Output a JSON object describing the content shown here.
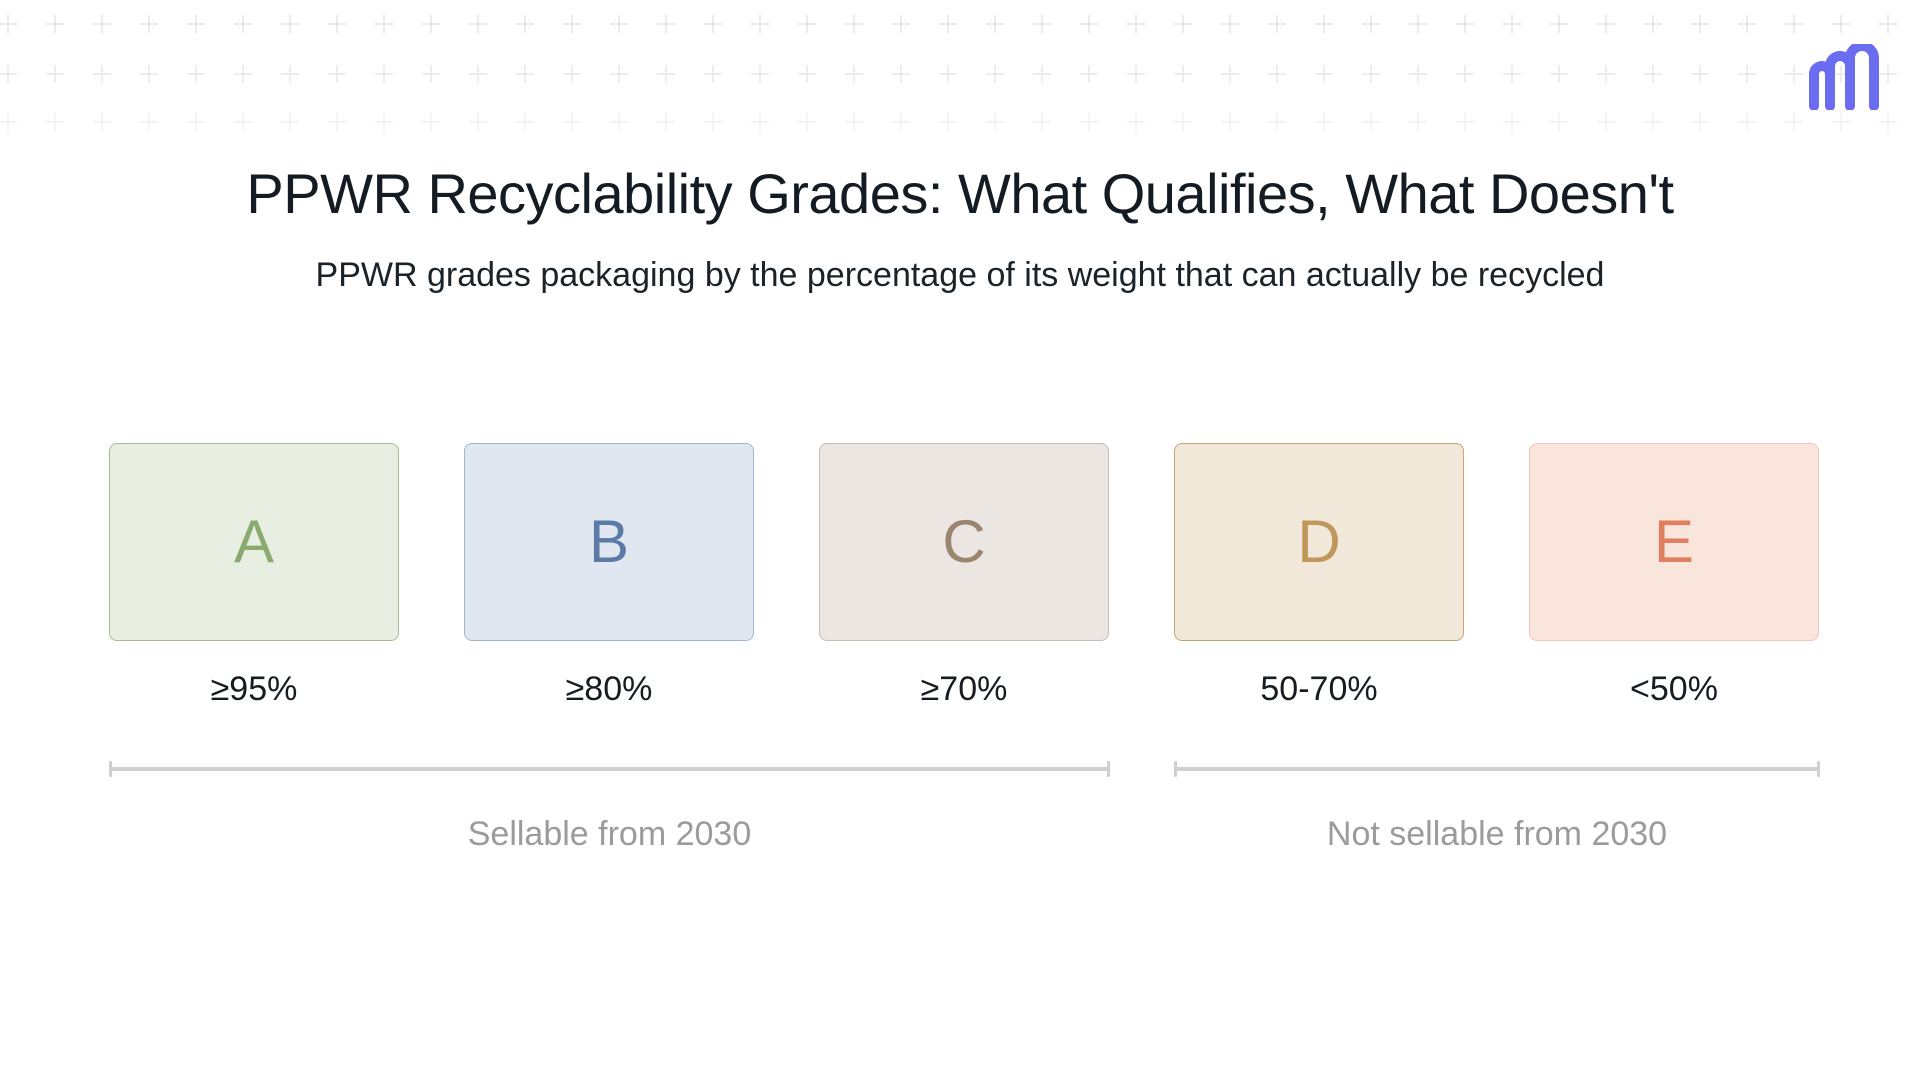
{
  "header": {
    "title": "PPWR Recyclability Grades: What Qualifies, What Doesn't",
    "subtitle": "PPWR grades packaging by the percentage of its weight that can actually be recycled"
  },
  "grades": [
    {
      "letter": "A",
      "threshold": "≥95%",
      "colors": {
        "fill": "#e9eee3",
        "border": "#a9bb92",
        "text": "#8aab70"
      }
    },
    {
      "letter": "B",
      "threshold": "≥80%",
      "colors": {
        "fill": "#e0e7f0",
        "border": "#a6b5c8",
        "text": "#5c7aa6"
      }
    },
    {
      "letter": "C",
      "threshold": "≥70%",
      "colors": {
        "fill": "#ebe6e1",
        "border": "#c7bdb3",
        "text": "#9b8571"
      }
    },
    {
      "letter": "D",
      "threshold": "50-70%",
      "colors": {
        "fill": "#f1e8da",
        "border": "#c4a576",
        "text": "#c0975a"
      }
    },
    {
      "letter": "E",
      "threshold": "<50%",
      "colors": {
        "fill": "#f9e5dc",
        "border": "#f0c6b7",
        "text": "#e0805f"
      }
    }
  ],
  "groups": {
    "sellable": {
      "label": "Sellable from 2030"
    },
    "not_sellable": {
      "label": "Not sellable from 2030"
    }
  },
  "colors": {
    "logo": "#6b6df0",
    "bracket": "#cfcfcf",
    "group_label": "#9b9b9b"
  }
}
